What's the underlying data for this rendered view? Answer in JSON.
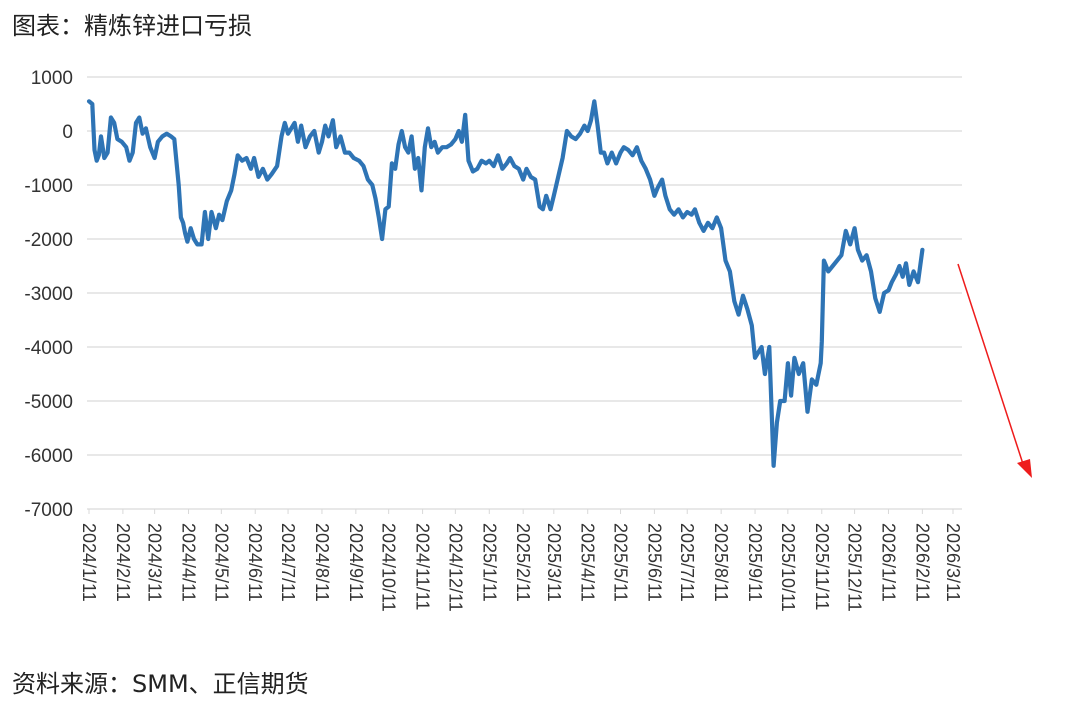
{
  "title": "图表：精炼锌进口亏损",
  "source": "资料来源：SMM、正信期货",
  "chart_data": {
    "type": "line",
    "title": "精炼锌进口亏损",
    "xlabel": "",
    "ylabel": "",
    "ylim": [
      -7000,
      1000
    ],
    "yticks": [
      1000,
      0,
      -1000,
      -2000,
      -3000,
      -4000,
      -5000,
      -6000,
      -7000
    ],
    "grid": true,
    "legend": "none",
    "x_tick_labels": [
      "2024/1/11",
      "2024/2/11",
      "2024/3/11",
      "2024/4/11",
      "2024/5/11",
      "2024/6/11",
      "2024/7/11",
      "2024/8/11",
      "2024/9/11",
      "2024/10/11",
      "2024/11/11",
      "2024/12/11",
      "2025/1/11",
      "2025/2/11",
      "2025/3/11",
      "2025/4/11",
      "2025/5/11",
      "2025/6/11",
      "2025/7/11",
      "2025/8/11",
      "2025/9/11",
      "2025/10/11",
      "2025/11/11",
      "2025/12/11",
      "2026/1/11",
      "2026/2/11",
      "2026/3/11"
    ],
    "series": [
      {
        "color": "#2e74b5",
        "points": [
          [
            "2024/1/11",
            550
          ],
          [
            "2024/1/14",
            500
          ],
          [
            "2024/1/16",
            -350
          ],
          [
            "2024/1/18",
            -550
          ],
          [
            "2024/1/20",
            -450
          ],
          [
            "2024/1/22",
            -100
          ],
          [
            "2024/1/25",
            -500
          ],
          [
            "2024/1/28",
            -400
          ],
          [
            "2024/1/31",
            250
          ],
          [
            "2024/2/3",
            150
          ],
          [
            "2024/2/6",
            -150
          ],
          [
            "2024/2/10",
            -200
          ],
          [
            "2024/2/14",
            -300
          ],
          [
            "2024/2/17",
            -550
          ],
          [
            "2024/2/20",
            -400
          ],
          [
            "2024/2/23",
            150
          ],
          [
            "2024/2/26",
            250
          ],
          [
            "2024/2/29",
            -50
          ],
          [
            "2024/3/3",
            50
          ],
          [
            "2024/3/7",
            -300
          ],
          [
            "2024/3/11",
            -500
          ],
          [
            "2024/3/14",
            -200
          ],
          [
            "2024/3/18",
            -100
          ],
          [
            "2024/3/22",
            -50
          ],
          [
            "2024/3/26",
            -100
          ],
          [
            "2024/3/29",
            -150
          ],
          [
            "2024/4/2",
            -1000
          ],
          [
            "2024/4/4",
            -1600
          ],
          [
            "2024/4/6",
            -1700
          ],
          [
            "2024/4/8",
            -1900
          ],
          [
            "2024/4/10",
            -2050
          ],
          [
            "2024/4/13",
            -1800
          ],
          [
            "2024/4/16",
            -2000
          ],
          [
            "2024/4/19",
            -2100
          ],
          [
            "2024/4/23",
            -2100
          ],
          [
            "2024/4/26",
            -1500
          ],
          [
            "2024/4/29",
            -2000
          ],
          [
            "2024/5/2",
            -1500
          ],
          [
            "2024/5/6",
            -1800
          ],
          [
            "2024/5/9",
            -1550
          ],
          [
            "2024/5/12",
            -1650
          ],
          [
            "2024/5/16",
            -1300
          ],
          [
            "2024/5/20",
            -1100
          ],
          [
            "2024/5/23",
            -800
          ],
          [
            "2024/5/26",
            -450
          ],
          [
            "2024/5/30",
            -550
          ],
          [
            "2024/6/3",
            -500
          ],
          [
            "2024/6/7",
            -700
          ],
          [
            "2024/6/10",
            -500
          ],
          [
            "2024/6/14",
            -850
          ],
          [
            "2024/6/18",
            -700
          ],
          [
            "2024/6/22",
            -900
          ],
          [
            "2024/6/26",
            -800
          ],
          [
            "2024/7/1",
            -650
          ],
          [
            "2024/7/5",
            -100
          ],
          [
            "2024/7/8",
            150
          ],
          [
            "2024/7/11",
            -50
          ],
          [
            "2024/7/14",
            50
          ],
          [
            "2024/7/17",
            150
          ],
          [
            "2024/7/20",
            -200
          ],
          [
            "2024/7/23",
            100
          ],
          [
            "2024/7/27",
            -300
          ],
          [
            "2024/7/31",
            -100
          ],
          [
            "2024/8/4",
            0
          ],
          [
            "2024/8/8",
            -400
          ],
          [
            "2024/8/11",
            -200
          ],
          [
            "2024/8/14",
            100
          ],
          [
            "2024/8/17",
            -100
          ],
          [
            "2024/8/21",
            200
          ],
          [
            "2024/8/24",
            -300
          ],
          [
            "2024/8/28",
            -100
          ],
          [
            "2024/9/1",
            -400
          ],
          [
            "2024/9/5",
            -400
          ],
          [
            "2024/9/9",
            -500
          ],
          [
            "2024/9/14",
            -550
          ],
          [
            "2024/9/18",
            -650
          ],
          [
            "2024/9/22",
            -900
          ],
          [
            "2024/9/26",
            -1000
          ],
          [
            "2024/9/29",
            -1250
          ],
          [
            "2024/10/2",
            -1600
          ],
          [
            "2024/10/5",
            -2000
          ],
          [
            "2024/10/8",
            -1450
          ],
          [
            "2024/10/11",
            -1400
          ],
          [
            "2024/10/14",
            -600
          ],
          [
            "2024/10/17",
            -700
          ],
          [
            "2024/10/20",
            -250
          ],
          [
            "2024/10/23",
            0
          ],
          [
            "2024/10/26",
            -300
          ],
          [
            "2024/10/29",
            -400
          ],
          [
            "2024/11/1",
            -100
          ],
          [
            "2024/11/4",
            -700
          ],
          [
            "2024/11/7",
            -500
          ],
          [
            "2024/11/10",
            -1100
          ],
          [
            "2024/11/13",
            -300
          ],
          [
            "2024/11/16",
            50
          ],
          [
            "2024/11/19",
            -300
          ],
          [
            "2024/11/22",
            -200
          ],
          [
            "2024/11/25",
            -400
          ],
          [
            "2024/11/29",
            -300
          ],
          [
            "2024/12/3",
            -300
          ],
          [
            "2024/12/7",
            -250
          ],
          [
            "2024/12/11",
            -150
          ],
          [
            "2024/12/14",
            0
          ],
          [
            "2024/12/17",
            -200
          ],
          [
            "2024/12/20",
            300
          ],
          [
            "2024/12/23",
            -550
          ],
          [
            "2024/12/27",
            -750
          ],
          [
            "2024/12/31",
            -700
          ],
          [
            "2025/1/4",
            -550
          ],
          [
            "2025/1/8",
            -600
          ],
          [
            "2025/1/11",
            -550
          ],
          [
            "2025/1/15",
            -650
          ],
          [
            "2025/1/19",
            -450
          ],
          [
            "2025/1/23",
            -700
          ],
          [
            "2025/1/27",
            -600
          ],
          [
            "2025/1/30",
            -500
          ],
          [
            "2025/2/3",
            -650
          ],
          [
            "2025/2/7",
            -700
          ],
          [
            "2025/2/11",
            -900
          ],
          [
            "2025/2/14",
            -700
          ],
          [
            "2025/2/18",
            -850
          ],
          [
            "2025/2/22",
            -900
          ],
          [
            "2025/2/26",
            -1400
          ],
          [
            "2025/3/1",
            -1450
          ],
          [
            "2025/3/4",
            -1200
          ],
          [
            "2025/3/8",
            -1450
          ],
          [
            "2025/3/11",
            -1200
          ],
          [
            "2025/3/15",
            -850
          ],
          [
            "2025/3/19",
            -500
          ],
          [
            "2025/3/23",
            0
          ],
          [
            "2025/3/27",
            -100
          ],
          [
            "2025/3/31",
            -150
          ],
          [
            "2025/4/4",
            -50
          ],
          [
            "2025/4/8",
            100
          ],
          [
            "2025/4/11",
            0
          ],
          [
            "2025/4/14",
            200
          ],
          [
            "2025/4/17",
            550
          ],
          [
            "2025/4/20",
            100
          ],
          [
            "2025/4/23",
            -400
          ],
          [
            "2025/4/26",
            -400
          ],
          [
            "2025/4/29",
            -600
          ],
          [
            "2025/5/3",
            -400
          ],
          [
            "2025/5/7",
            -600
          ],
          [
            "2025/5/11",
            -400
          ],
          [
            "2025/5/14",
            -300
          ],
          [
            "2025/5/18",
            -350
          ],
          [
            "2025/5/22",
            -450
          ],
          [
            "2025/5/26",
            -300
          ],
          [
            "2025/5/30",
            -550
          ],
          [
            "2025/6/3",
            -700
          ],
          [
            "2025/6/7",
            -900
          ],
          [
            "2025/6/11",
            -1200
          ],
          [
            "2025/6/14",
            -1050
          ],
          [
            "2025/6/18",
            -900
          ],
          [
            "2025/6/21",
            -1200
          ],
          [
            "2025/6/25",
            -1450
          ],
          [
            "2025/6/29",
            -1550
          ],
          [
            "2025/7/3",
            -1450
          ],
          [
            "2025/7/7",
            -1600
          ],
          [
            "2025/7/11",
            -1500
          ],
          [
            "2025/7/15",
            -1550
          ],
          [
            "2025/7/18",
            -1450
          ],
          [
            "2025/7/22",
            -1700
          ],
          [
            "2025/7/26",
            -1850
          ],
          [
            "2025/7/30",
            -1700
          ],
          [
            "2025/8/3",
            -1800
          ],
          [
            "2025/8/7",
            -1600
          ],
          [
            "2025/8/11",
            -1800
          ],
          [
            "2025/8/15",
            -2400
          ],
          [
            "2025/8/19",
            -2600
          ],
          [
            "2025/8/23",
            -3150
          ],
          [
            "2025/8/27",
            -3400
          ],
          [
            "2025/8/31",
            -3050
          ],
          [
            "2025/9/4",
            -3300
          ],
          [
            "2025/9/8",
            -3600
          ],
          [
            "2025/9/11",
            -4200
          ],
          [
            "2025/9/14",
            -4100
          ],
          [
            "2025/9/17",
            -4000
          ],
          [
            "2025/9/20",
            -4500
          ],
          [
            "2025/9/24",
            -4000
          ],
          [
            "2025/9/28",
            -6200
          ],
          [
            "2025/10/1",
            -5400
          ],
          [
            "2025/10/4",
            -5000
          ],
          [
            "2025/10/8",
            -5000
          ],
          [
            "2025/10/11",
            -4300
          ],
          [
            "2025/10/14",
            -4900
          ],
          [
            "2025/10/17",
            -4200
          ],
          [
            "2025/10/21",
            -4500
          ],
          [
            "2025/10/25",
            -4300
          ],
          [
            "2025/10/29",
            -5200
          ],
          [
            "2025/11/2",
            -4600
          ],
          [
            "2025/11/6",
            -4700
          ],
          [
            "2025/11/10",
            -4300
          ],
          [
            "2025/11/11",
            -3900
          ],
          [
            "2025/11/13",
            -2400
          ],
          [
            "2025/11/17",
            -2600
          ],
          [
            "2025/11/21",
            -2500
          ],
          [
            "2025/11/25",
            -2400
          ],
          [
            "2025/11/29",
            -2300
          ],
          [
            "2025/12/3",
            -1850
          ],
          [
            "2025/12/7",
            -2100
          ],
          [
            "2025/12/11",
            -1800
          ],
          [
            "2025/12/14",
            -2200
          ],
          [
            "2025/12/18",
            -2400
          ],
          [
            "2025/12/22",
            -2300
          ],
          [
            "2025/12/26",
            -2600
          ],
          [
            "2025/12/30",
            -3100
          ],
          [
            "2026/1/3",
            -3350
          ],
          [
            "2026/1/7",
            -3000
          ],
          [
            "2026/1/11",
            -2950
          ],
          [
            "2026/1/14",
            -2800
          ],
          [
            "2026/1/18",
            -2650
          ],
          [
            "2026/1/21",
            -2500
          ],
          [
            "2026/1/24",
            -2700
          ],
          [
            "2026/1/27",
            -2450
          ],
          [
            "2026/1/30",
            -2850
          ],
          [
            "2026/2/3",
            -2600
          ],
          [
            "2026/2/7",
            -2800
          ],
          [
            "2026/2/9",
            -2500
          ],
          [
            "2026/2/11",
            -2200
          ]
        ]
      }
    ],
    "annotation": {
      "type": "arrow",
      "color": "#ee1c1c"
    }
  }
}
